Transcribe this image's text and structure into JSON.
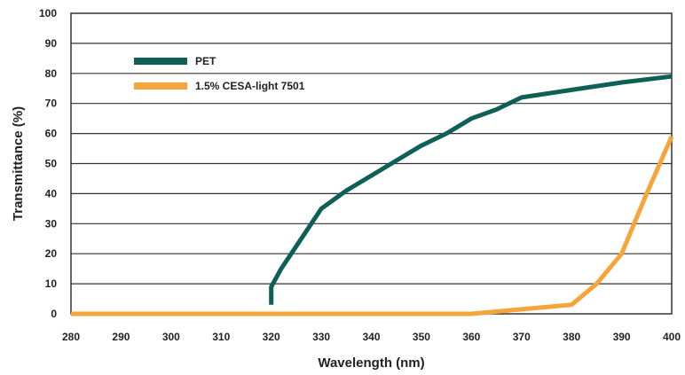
{
  "chart_data": {
    "type": "line",
    "xlabel": "Wavelength (nm)",
    "ylabel": "Transmittance (%)",
    "xlim": [
      280,
      400
    ],
    "ylim": [
      0,
      100
    ],
    "x_ticks": [
      "280",
      "290",
      "300",
      "310",
      "320",
      "330",
      "340",
      "350",
      "360",
      "370",
      "380",
      "390",
      "400"
    ],
    "y_ticks": [
      "0",
      "10",
      "20",
      "30",
      "40",
      "50",
      "60",
      "70",
      "80",
      "90",
      "100"
    ],
    "grid": "horizontal",
    "legend_position": "top-left",
    "series": [
      {
        "name": "PET",
        "color": "#0e5f55",
        "points": [
          [
            320,
            3
          ],
          [
            320,
            9
          ],
          [
            322,
            15
          ],
          [
            326,
            25
          ],
          [
            330,
            35
          ],
          [
            335,
            41
          ],
          [
            340,
            46
          ],
          [
            345,
            51
          ],
          [
            350,
            56
          ],
          [
            355,
            60
          ],
          [
            360,
            65
          ],
          [
            365,
            68
          ],
          [
            370,
            72
          ],
          [
            380,
            74.5
          ],
          [
            390,
            77
          ],
          [
            400,
            79
          ]
        ]
      },
      {
        "name": "1.5% CESA-light 7501",
        "color": "#f5a53a",
        "points": [
          [
            280,
            0
          ],
          [
            300,
            0
          ],
          [
            320,
            0
          ],
          [
            340,
            0
          ],
          [
            360,
            0
          ],
          [
            370,
            1.5
          ],
          [
            380,
            3
          ],
          [
            385,
            10
          ],
          [
            390,
            20
          ],
          [
            395,
            40
          ],
          [
            400,
            59
          ]
        ]
      }
    ]
  }
}
